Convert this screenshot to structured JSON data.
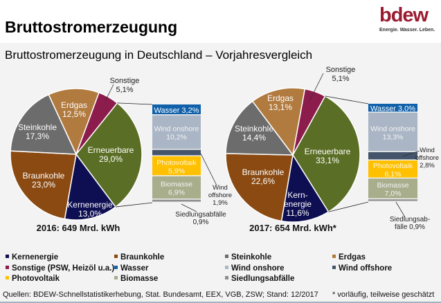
{
  "header": {
    "title": "Bruttostromerzeugung",
    "logo_text": "bdew",
    "logo_tagline": "Energie. Wasser. Leben."
  },
  "subtitle": "Bruttostromerzeugung in Deutschland – Vorjahresvergleich",
  "colors": {
    "Kernenergie": "#0e0e52",
    "Braunkohle": "#8a4a12",
    "Steinkohle": "#6c6c6c",
    "Erdgas": "#b17a3e",
    "Sonstige": "#8c1c4c",
    "Erneuerbare": "#5b6e25",
    "Wasser": "#1060aa",
    "Wind onshore": "#aab5c5",
    "Wind offshore": "#44546a",
    "Photovoltaik": "#ffc000",
    "Biomasse": "#a8ad8b",
    "Siedlungsabfälle": "#8e8e8e"
  },
  "chart_data": [
    {
      "type": "pie",
      "title": "2016:  649 Mrd. kWh",
      "slices": [
        {
          "name": "Erneuerbare",
          "label": "Erneuerbare",
          "value": 29.0
        },
        {
          "name": "Kernenergie",
          "label": "Kernenergie",
          "value": 13.0
        },
        {
          "name": "Braunkohle",
          "label": "Braunkohle",
          "value": 23.0
        },
        {
          "name": "Steinkohle",
          "label": "Steinkohle",
          "value": 17.3
        },
        {
          "name": "Erdgas",
          "label": "Erdgas",
          "value": 12.5
        },
        {
          "name": "Sonstige",
          "label": "Sonstige",
          "value": 5.1
        }
      ],
      "breakdown_of": "Erneuerbare",
      "breakdown": [
        {
          "name": "Wasser",
          "label": "Wasser",
          "value": 3.2
        },
        {
          "name": "Wind onshore",
          "label": "Wind onshore",
          "value": 10.2
        },
        {
          "name": "Wind offshore",
          "label": "Wind offshore",
          "value": 1.9
        },
        {
          "name": "Photovoltaik",
          "label": "Photovoltaik",
          "value": 5.9
        },
        {
          "name": "Biomasse",
          "label": "Biomasse",
          "value": 6.9
        },
        {
          "name": "Siedlungsabfälle",
          "label": "Siedlungsabfälle",
          "value": 0.9
        }
      ]
    },
    {
      "type": "pie",
      "title": "2017: 654 Mrd. kWh*",
      "slices": [
        {
          "name": "Erneuerbare",
          "label": "Erneuerbare",
          "value": 33.1
        },
        {
          "name": "Kernenergie",
          "label": "Kern- energie",
          "value": 11.6
        },
        {
          "name": "Braunkohle",
          "label": "Braunkohle",
          "value": 22.6
        },
        {
          "name": "Steinkohle",
          "label": "Steinkohle",
          "value": 14.4
        },
        {
          "name": "Erdgas",
          "label": "Erdgas",
          "value": 13.1
        },
        {
          "name": "Sonstige",
          "label": "Sonstige",
          "value": 5.1
        }
      ],
      "breakdown_of": "Erneuerbare",
      "breakdown": [
        {
          "name": "Wasser",
          "label": "Wasser",
          "value": 3.0
        },
        {
          "name": "Wind onshore",
          "label": "Wind onshore",
          "value": 13.3
        },
        {
          "name": "Wind offshore",
          "label": "Wind offshore",
          "value": 2.8
        },
        {
          "name": "Photovoltaik",
          "label": "Photovoltaik",
          "value": 6.1
        },
        {
          "name": "Biomasse",
          "label": "Biomasse",
          "value": 7.0
        },
        {
          "name": "Siedlungsabfälle",
          "label": "Siedlungsab- fälle",
          "value": 0.9
        }
      ]
    }
  ],
  "legend": [
    {
      "name": "Kernenergie",
      "label": "Kernenergie"
    },
    {
      "name": "Braunkohle",
      "label": "Braunkohle"
    },
    {
      "name": "Steinkohle",
      "label": "Steinkohle"
    },
    {
      "name": "Erdgas",
      "label": "Erdgas"
    },
    {
      "name": "Sonstige",
      "label": "Sonstige (PSW, Heizöl u.a.)"
    },
    {
      "name": "Wasser",
      "label": "Wasser"
    },
    {
      "name": "Wind onshore",
      "label": "Wind onshore"
    },
    {
      "name": "Wind offshore",
      "label": "Wind offshore"
    },
    {
      "name": "Photovoltaik",
      "label": "Photovoltaik"
    },
    {
      "name": "Biomasse",
      "label": "Biomasse"
    },
    {
      "name": "Siedlungsabfälle",
      "label": "Siedlungsabfälle"
    }
  ],
  "footer": {
    "sources": "Quellen: BDEW-Schnellstatistikerhebung, Stat. Bundesamt, EEX, VGB, ZSW; Stand: 12/2017",
    "note": "* vorläufig, teilweise geschätzt"
  }
}
